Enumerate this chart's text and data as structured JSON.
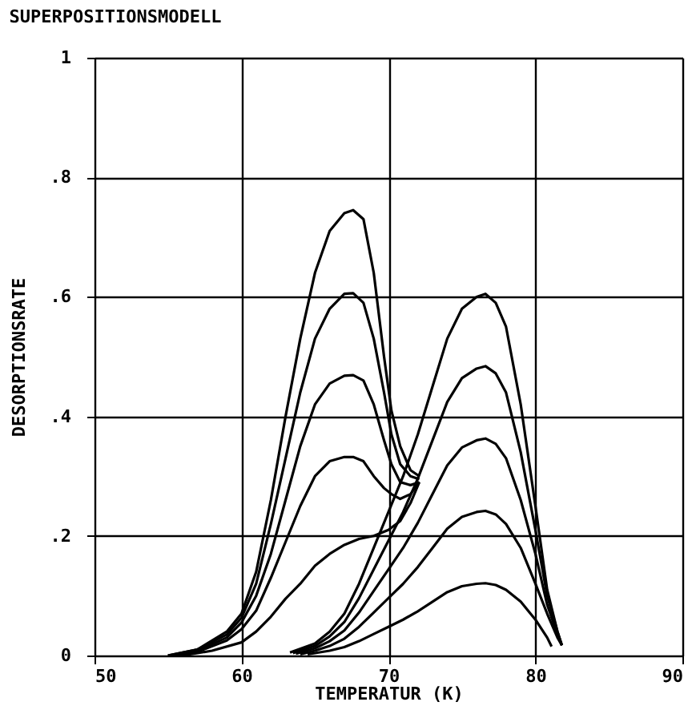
{
  "chart_data": {
    "type": "line",
    "title": "SUPERPOSITIONSMODELL",
    "xlabel": "TEMPERATUR (K)",
    "ylabel": "DESORPTIONSRATE",
    "xlim": [
      50,
      90
    ],
    "xticks": [
      50,
      60,
      70,
      80,
      90
    ],
    "ylim": [
      0,
      1
    ],
    "yticks": [
      0,
      {
        "value": 0.2,
        "label": ".2"
      },
      {
        "value": 0.4,
        "label": ".4"
      },
      {
        "value": 0.6,
        "label": ".6"
      },
      {
        "value": 0.8,
        "label": ".8"
      },
      1
    ],
    "grid": true,
    "legend": false,
    "marker": "none",
    "line_style": "solid",
    "series": [
      {
        "color": "#000000",
        "x": [
          55,
          57,
          59,
          60,
          61,
          62,
          63,
          64,
          65,
          66,
          67,
          67.6,
          68.3,
          69,
          69.7,
          70.2,
          70.8,
          71.5,
          72.1
        ],
        "values": [
          0,
          0.01,
          0.04,
          0.07,
          0.14,
          0.26,
          0.4,
          0.53,
          0.64,
          0.71,
          0.74,
          0.745,
          0.73,
          0.64,
          0.5,
          0.41,
          0.35,
          0.31,
          0.3
        ]
      },
      {
        "color": "#000000",
        "x": [
          55,
          57,
          59,
          60,
          61,
          62,
          63,
          64,
          65,
          66,
          67,
          67.6,
          68.3,
          69,
          69.7,
          70.2,
          70.8,
          71.5,
          72.1
        ],
        "values": [
          0,
          0.01,
          0.035,
          0.063,
          0.12,
          0.22,
          0.33,
          0.44,
          0.53,
          0.58,
          0.605,
          0.606,
          0.59,
          0.53,
          0.44,
          0.37,
          0.32,
          0.3,
          0.295
        ]
      },
      {
        "color": "#000000",
        "x": [
          55.5,
          57,
          59,
          60,
          61,
          62,
          63,
          64,
          65,
          66,
          67,
          67.6,
          68.3,
          69,
          69.7,
          70.2,
          70.8,
          71.5,
          72.1
        ],
        "values": [
          0,
          0.008,
          0.03,
          0.055,
          0.1,
          0.17,
          0.26,
          0.35,
          0.42,
          0.455,
          0.468,
          0.469,
          0.46,
          0.42,
          0.36,
          0.32,
          0.29,
          0.285,
          0.29
        ]
      },
      {
        "color": "#000000",
        "x": [
          55.5,
          57,
          59,
          60,
          61,
          62,
          63,
          64,
          65,
          66,
          67,
          67.6,
          68.3,
          69,
          69.7,
          70.2,
          70.8,
          71.5,
          72.1
        ],
        "values": [
          0,
          0.006,
          0.025,
          0.044,
          0.075,
          0.13,
          0.19,
          0.25,
          0.3,
          0.325,
          0.332,
          0.332,
          0.325,
          0.3,
          0.28,
          0.27,
          0.262,
          0.27,
          0.29
        ]
      },
      {
        "color": "#000000",
        "x": [
          56,
          58,
          60,
          61,
          62,
          63,
          64,
          65,
          66,
          67,
          68,
          69,
          70,
          70.8,
          71.5,
          72.1
        ],
        "values": [
          0,
          0.008,
          0.022,
          0.04,
          0.065,
          0.095,
          0.12,
          0.15,
          0.17,
          0.185,
          0.195,
          0.2,
          0.21,
          0.225,
          0.255,
          0.29
        ]
      },
      {
        "color": "#000000",
        "x": [
          63.3,
          65,
          66,
          67,
          68,
          69,
          70,
          71,
          72,
          73,
          74,
          75,
          76,
          76.6,
          77.3,
          78,
          79,
          80,
          80.8,
          81.5,
          81.8
        ],
        "values": [
          0.005,
          0.02,
          0.04,
          0.07,
          0.12,
          0.18,
          0.24,
          0.3,
          0.37,
          0.45,
          0.53,
          0.58,
          0.6,
          0.605,
          0.59,
          0.55,
          0.42,
          0.25,
          0.11,
          0.04,
          0.017
        ]
      },
      {
        "color": "#000000",
        "x": [
          63.5,
          65,
          66,
          67,
          68,
          69,
          70,
          71,
          72,
          73,
          74,
          75,
          76,
          76.6,
          77.3,
          78,
          79,
          80,
          80.8,
          81.5,
          81.8
        ],
        "values": [
          0.004,
          0.016,
          0.032,
          0.056,
          0.096,
          0.144,
          0.192,
          0.24,
          0.296,
          0.36,
          0.424,
          0.464,
          0.48,
          0.484,
          0.472,
          0.44,
          0.34,
          0.21,
          0.1,
          0.04,
          0.017
        ]
      },
      {
        "color": "#000000",
        "x": [
          63.7,
          65,
          66,
          67,
          68,
          69,
          70,
          71,
          72,
          73,
          74,
          75,
          76,
          76.6,
          77.3,
          78,
          79,
          80,
          80.8,
          81.5,
          81.8
        ],
        "values": [
          0.003,
          0.012,
          0.024,
          0.042,
          0.072,
          0.108,
          0.144,
          0.18,
          0.222,
          0.27,
          0.318,
          0.348,
          0.36,
          0.363,
          0.354,
          0.33,
          0.26,
          0.17,
          0.085,
          0.035,
          0.017
        ]
      },
      {
        "color": "#000000",
        "x": [
          64,
          65,
          66,
          67,
          68,
          69,
          70,
          71,
          72,
          73,
          74,
          75,
          76,
          76.6,
          77.3,
          78,
          79,
          80,
          80.8,
          81.5,
          81.8
        ],
        "values": [
          0.002,
          0.008,
          0.016,
          0.028,
          0.048,
          0.072,
          0.096,
          0.12,
          0.148,
          0.18,
          0.212,
          0.232,
          0.24,
          0.242,
          0.236,
          0.22,
          0.18,
          0.12,
          0.07,
          0.03,
          0.017
        ]
      },
      {
        "color": "#000000",
        "x": [
          64.5,
          66,
          67,
          68,
          69,
          70,
          71,
          72,
          73,
          74,
          75,
          76,
          76.6,
          77.3,
          78,
          79,
          80,
          80.8,
          81.1
        ],
        "values": [
          0.002,
          0.008,
          0.014,
          0.024,
          0.036,
          0.048,
          0.06,
          0.074,
          0.09,
          0.106,
          0.116,
          0.12,
          0.121,
          0.118,
          0.11,
          0.09,
          0.06,
          0.03,
          0.015
        ]
      }
    ]
  }
}
